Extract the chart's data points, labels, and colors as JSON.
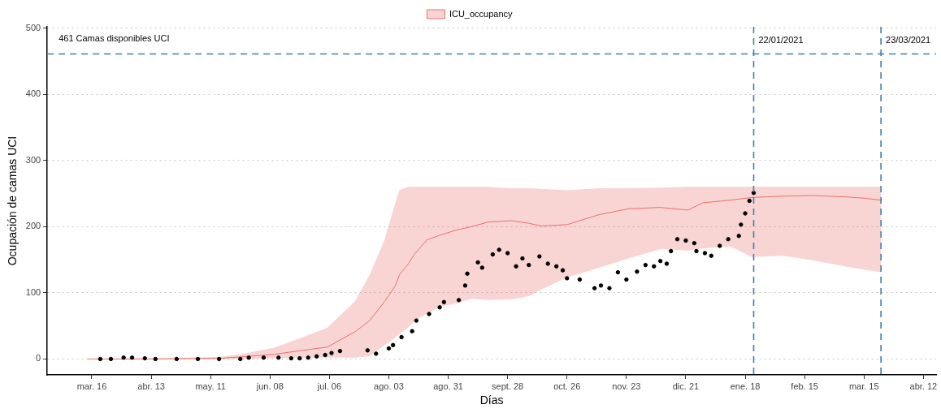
{
  "chart_data": {
    "type": "line",
    "xlabel": "Días",
    "ylabel": "Ocupación de camas UCI",
    "xlim": [
      "2020-02-24",
      "2021-04-18"
    ],
    "ylim": [
      -24,
      502
    ],
    "xticks": [
      {
        "value": "2020-03-16",
        "label": "mar. 16"
      },
      {
        "value": "2020-04-13",
        "label": "abr. 13"
      },
      {
        "value": "2020-05-11",
        "label": "may. 11"
      },
      {
        "value": "2020-06-08",
        "label": "jun. 08"
      },
      {
        "value": "2020-07-06",
        "label": "jul. 06"
      },
      {
        "value": "2020-08-03",
        "label": "ago. 03"
      },
      {
        "value": "2020-08-31",
        "label": "ago. 31"
      },
      {
        "value": "2020-09-28",
        "label": "sept. 28"
      },
      {
        "value": "2020-10-26",
        "label": "oct. 26"
      },
      {
        "value": "2020-11-23",
        "label": "nov. 23"
      },
      {
        "value": "2020-12-21",
        "label": "dic. 21"
      },
      {
        "value": "2021-01-18",
        "label": "ene. 18"
      },
      {
        "value": "2021-02-15",
        "label": "feb. 15"
      },
      {
        "value": "2021-03-15",
        "label": "mar. 15"
      },
      {
        "value": "2021-04-12",
        "label": "abr. 12"
      }
    ],
    "yticks": [
      0,
      100,
      200,
      300,
      400,
      500
    ],
    "grid": "y",
    "legend": "top",
    "series": [
      {
        "name": "ICU_occupancy",
        "type": "line",
        "marker": "none",
        "color": "#e8726c",
        "x": [
          "2020-03-14",
          "2020-04-15",
          "2020-05-15",
          "2020-05-25",
          "2020-06-10",
          "2020-06-21",
          "2020-07-05",
          "2020-07-18",
          "2020-07-25",
          "2020-08-01",
          "2020-08-06",
          "2020-08-08",
          "2020-08-12",
          "2020-08-15",
          "2020-08-21",
          "2020-08-28",
          "2020-09-04",
          "2020-09-11",
          "2020-09-19",
          "2020-09-30",
          "2020-10-08",
          "2020-10-14",
          "2020-10-26",
          "2020-11-10",
          "2020-11-24",
          "2020-12-09",
          "2020-12-22",
          "2020-12-29",
          "2021-01-11",
          "2021-01-21",
          "2021-02-05",
          "2021-02-19",
          "2021-03-06",
          "2021-03-15",
          "2021-03-23"
        ],
        "values": [
          0,
          0,
          1,
          3,
          7,
          12,
          18,
          41,
          58,
          87,
          110,
          127,
          143,
          158,
          180,
          188,
          195,
          200,
          207,
          209,
          205,
          201,
          203,
          218,
          227,
          229,
          225,
          236,
          240,
          244,
          246,
          247,
          245,
          243,
          240
        ],
        "lower": [
          0,
          0,
          0,
          0,
          1,
          2,
          2,
          2,
          4,
          21,
          32,
          38,
          47,
          57,
          69,
          80,
          84,
          91,
          89,
          90,
          95,
          105,
          123,
          138,
          152,
          166,
          164,
          167,
          170,
          154,
          156,
          149,
          140,
          135,
          131
        ],
        "upper": [
          0,
          1,
          3,
          7,
          17,
          30,
          47,
          87,
          127,
          180,
          235,
          255,
          260,
          260,
          260,
          260,
          260,
          260,
          260,
          258,
          258,
          257,
          255,
          258,
          258,
          259,
          260,
          260,
          260,
          260,
          260,
          260,
          260,
          260,
          260
        ]
      },
      {
        "type": "scatter",
        "color": "#000000",
        "x": [
          "2020-03-20",
          "2020-03-25",
          "2020-03-31",
          "2020-04-04",
          "2020-04-10",
          "2020-04-15",
          "2020-04-25",
          "2020-05-05",
          "2020-05-15",
          "2020-05-25",
          "2020-05-29",
          "2020-06-05",
          "2020-06-12",
          "2020-06-18",
          "2020-06-22",
          "2020-06-26",
          "2020-06-30",
          "2020-07-04",
          "2020-07-07",
          "2020-07-11",
          "2020-07-24",
          "2020-07-28",
          "2020-08-03",
          "2020-08-05",
          "2020-08-09",
          "2020-08-14",
          "2020-08-16",
          "2020-08-22",
          "2020-08-27",
          "2020-08-29",
          "2020-09-05",
          "2020-09-08",
          "2020-09-09",
          "2020-09-14",
          "2020-09-16",
          "2020-09-21",
          "2020-09-24",
          "2020-09-28",
          "2020-10-02",
          "2020-10-05",
          "2020-10-08",
          "2020-10-13",
          "2020-10-17",
          "2020-10-21",
          "2020-10-24",
          "2020-10-26",
          "2020-11-01",
          "2020-11-08",
          "2020-11-11",
          "2020-11-15",
          "2020-11-19",
          "2020-11-23",
          "2020-11-28",
          "2020-12-02",
          "2020-12-06",
          "2020-12-09",
          "2020-12-12",
          "2020-12-14",
          "2020-12-17",
          "2020-12-21",
          "2020-12-25",
          "2020-12-26",
          "2020-12-30",
          "2021-01-02",
          "2021-01-06",
          "2021-01-10",
          "2021-01-15",
          "2021-01-16",
          "2021-01-18",
          "2021-01-20",
          "2021-01-22"
        ],
        "values": [
          0,
          0,
          2,
          2,
          1,
          0,
          0,
          0,
          0,
          0,
          2,
          2,
          2,
          1,
          1,
          2,
          4,
          6,
          9,
          12,
          13,
          8,
          16,
          21,
          33,
          42,
          58,
          68,
          78,
          86,
          89,
          111,
          129,
          146,
          138,
          158,
          165,
          160,
          140,
          152,
          142,
          155,
          144,
          140,
          134,
          122,
          120,
          107,
          111,
          107,
          131,
          120,
          132,
          142,
          140,
          148,
          144,
          163,
          181,
          179,
          175,
          163,
          160,
          156,
          171,
          181,
          186,
          203,
          220,
          239,
          251
        ]
      }
    ],
    "marker": "circle",
    "ref_lines": [
      {
        "axis": "y",
        "value": 461,
        "label": "461 Camas disponibles UCI",
        "color": "#3f7fb3",
        "line_style": "dashed"
      },
      {
        "axis": "x",
        "value": "2021-01-22",
        "label": "22/01/2021",
        "color": "#3f7fb3",
        "line_style": "dashed"
      },
      {
        "axis": "x",
        "value": "2021-03-23",
        "label": "23/03/2021",
        "color": "#3f7fb3",
        "line_style": "dashed"
      }
    ]
  }
}
